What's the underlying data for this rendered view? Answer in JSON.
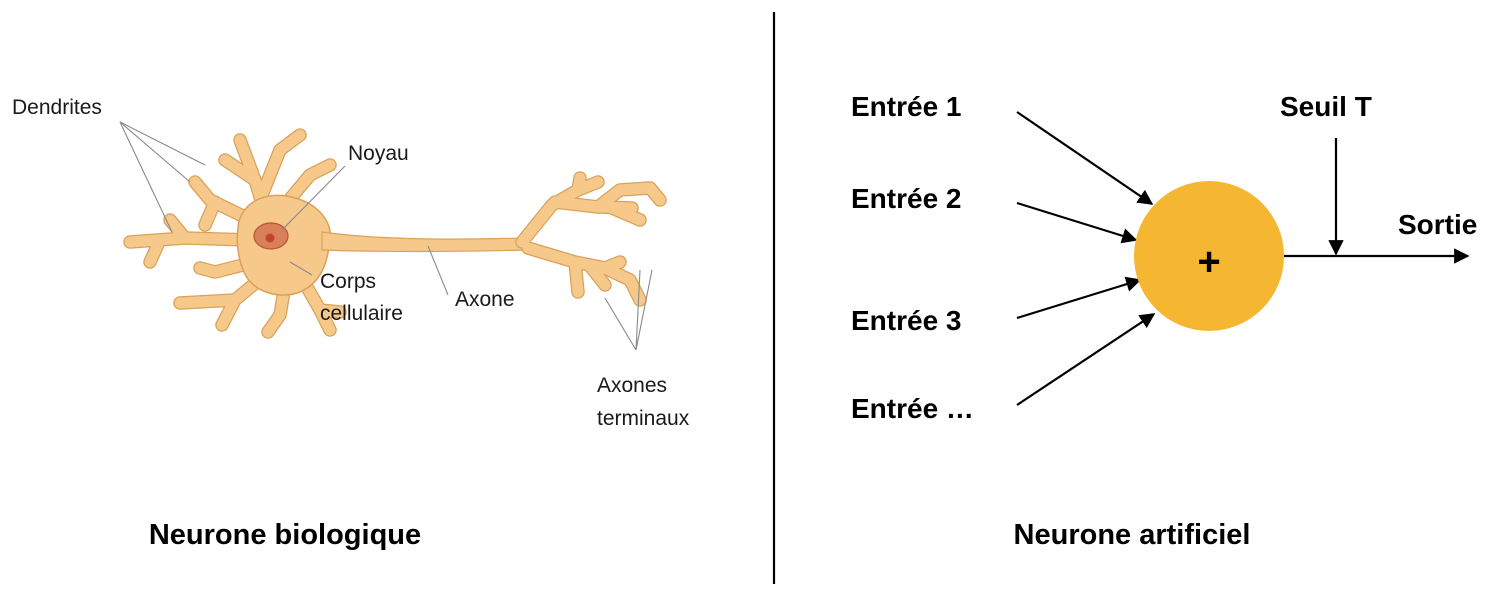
{
  "colors": {
    "neuron_body": "#f6c98b",
    "neuron_outline": "#d9a15a",
    "nucleus": "#d9805a",
    "nucleolus": "#c0462a",
    "perceptron": "#f5b731",
    "divider": "#000000"
  },
  "biological": {
    "caption": "Neurone biologique",
    "labels": {
      "dendrites": "Dendrites",
      "noyau": "Noyau",
      "corps_line1": "Corps",
      "corps_line2": "cellulaire",
      "axone": "Axone",
      "terminaux_line1": "Axones",
      "terminaux_line2": "terminaux"
    }
  },
  "artificial": {
    "caption": "Neurone artificiel",
    "inputs": [
      "Entrée 1",
      "Entrée 2",
      "Entrée 3",
      "Entrée …"
    ],
    "threshold": "Seuil T",
    "output": "Sortie",
    "operator": "+"
  }
}
